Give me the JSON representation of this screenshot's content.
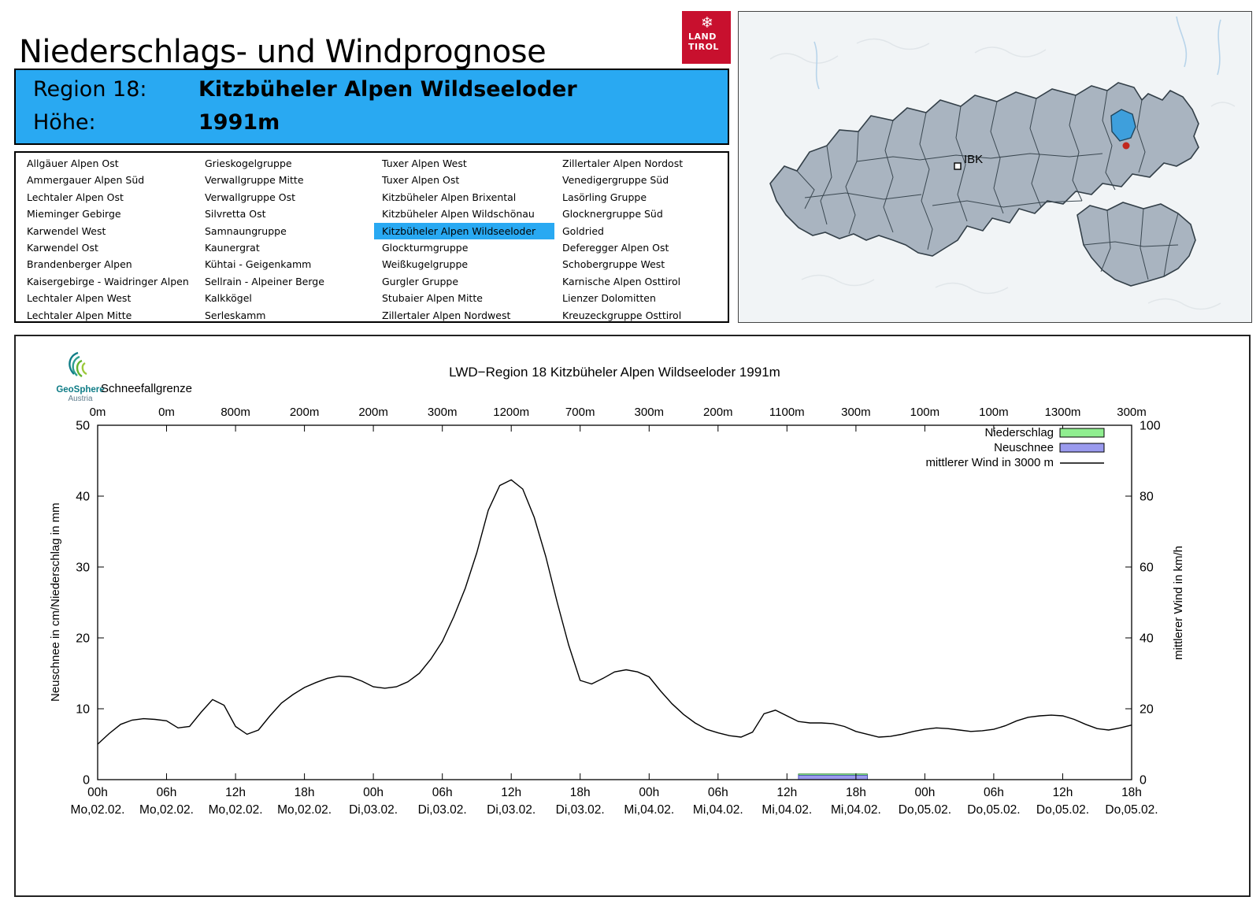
{
  "header": {
    "title": "Niederschlags- und Windprognose"
  },
  "brand": {
    "snowflake_icon": "❄",
    "line1": "LAND",
    "line2": "TIROL"
  },
  "region_banner": {
    "region_label": "Region 18:",
    "region_name": "Kitzbüheler Alpen Wildseeloder",
    "hoehe_label": "Höhe:",
    "hoehe_value": "1991m"
  },
  "region_list": {
    "selected": "Kitzbüheler Alpen Wildseeloder",
    "columns": [
      [
        "Allgäuer Alpen Ost",
        "Ammergauer Alpen Süd",
        "Lechtaler Alpen Ost",
        "Mieminger Gebirge",
        "Karwendel West",
        "Karwendel Ost",
        "Brandenberger Alpen",
        "Kaisergebirge - Waidringer Alpen",
        "Lechtaler Alpen West",
        "Lechtaler Alpen Mitte"
      ],
      [
        "Grieskogelgruppe",
        "Verwallgruppe Mitte",
        "Verwallgruppe Ost",
        "Silvretta Ost",
        "Samnaungruppe",
        "Kaunergrat",
        "Kühtai - Geigenkamm",
        "Sellrain - Alpeiner Berge",
        "Kalkkögel",
        "Serleskamm"
      ],
      [
        "Tuxer Alpen West",
        "Tuxer Alpen Ost",
        "Kitzbüheler Alpen Brixental",
        "Kitzbüheler Alpen Wildschönau",
        "Kitzbüheler Alpen Wildseeloder",
        "Glockturmgruppe",
        "Weißkugelgruppe",
        "Gurgler Gruppe",
        "Stubaier Alpen Mitte",
        "Zillertaler Alpen Nordwest"
      ],
      [
        "Zillertaler Alpen Nordost",
        "Venedigergruppe Süd",
        "Lasörling Gruppe",
        "Glocknergruppe Süd",
        "Goldried",
        "Deferegger Alpen Ost",
        "Schobergruppe West",
        "Karnische Alpen Osttirol",
        "Lienzer Dolomitten",
        "Kreuzeckgruppe Osttirol"
      ]
    ]
  },
  "map": {
    "ibk_label": "IBK",
    "highlight_color": "#3E9FDC",
    "region_fill": "#A9B4C0"
  },
  "geosphere": {
    "line1": "GeoSphere",
    "line2": "Austria"
  },
  "chart_data": {
    "type": "line",
    "title": "LWD−Region 18 Kitzbüheler Alpen Wildseeloder 1991m",
    "schneefallgrenze_label": "Schneefallgrenze",
    "schneefallgrenze_values": [
      "0m",
      "0m",
      "800m",
      "200m",
      "200m",
      "300m",
      "1200m",
      "700m",
      "300m",
      "200m",
      "1100m",
      "300m",
      "100m",
      "100m",
      "1300m",
      "300m"
    ],
    "ylabel_left": "Neuschnee in cm/Niederschlag in mm",
    "ylabel_right": "mittlerer Wind in km/h",
    "ylim_left": [
      0,
      50
    ],
    "ylim_right": [
      0,
      100
    ],
    "yticks_left": [
      0,
      10,
      20,
      30,
      40,
      50
    ],
    "yticks_right": [
      0,
      20,
      40,
      60,
      80,
      100
    ],
    "x_total_hours": 90,
    "x_ticks": [
      {
        "hour": 0,
        "time": "00h",
        "date": "Mo,02.02."
      },
      {
        "hour": 6,
        "time": "06h",
        "date": "Mo,02.02."
      },
      {
        "hour": 12,
        "time": "12h",
        "date": "Mo,02.02."
      },
      {
        "hour": 18,
        "time": "18h",
        "date": "Mo,02.02."
      },
      {
        "hour": 24,
        "time": "00h",
        "date": "Di,03.02."
      },
      {
        "hour": 30,
        "time": "06h",
        "date": "Di,03.02."
      },
      {
        "hour": 36,
        "time": "12h",
        "date": "Di,03.02."
      },
      {
        "hour": 42,
        "time": "18h",
        "date": "Di,03.02."
      },
      {
        "hour": 48,
        "time": "00h",
        "date": "Mi,04.02."
      },
      {
        "hour": 54,
        "time": "06h",
        "date": "Mi,04.02."
      },
      {
        "hour": 60,
        "time": "12h",
        "date": "Mi,04.02."
      },
      {
        "hour": 66,
        "time": "18h",
        "date": "Mi,04.02."
      },
      {
        "hour": 72,
        "time": "00h",
        "date": "Do,05.02."
      },
      {
        "hour": 78,
        "time": "06h",
        "date": "Do,05.02."
      },
      {
        "hour": 84,
        "time": "12h",
        "date": "Do,05.02."
      },
      {
        "hour": 90,
        "time": "18h",
        "date": "Do,05.02."
      }
    ],
    "colors": {
      "niederschlag": "#90EE90",
      "neuschnee": "#9A9AEE",
      "wind": "#000000"
    },
    "legend": [
      {
        "label": "Niederschlag",
        "type": "box",
        "color": "#90EE90"
      },
      {
        "label": "Neuschnee",
        "type": "box",
        "color": "#9A9AEE"
      },
      {
        "label": "mittlerer Wind in 3000 m",
        "type": "line",
        "color": "#000000"
      }
    ],
    "wind": {
      "name": "mittlerer Wind in 3000 m",
      "axis": "right",
      "unit": "km/h",
      "start_hour": 0,
      "step_hours": 1,
      "values_kmh": [
        10,
        13,
        15.6,
        16.8,
        17.2,
        17,
        16.6,
        14.6,
        15,
        19,
        22.6,
        21,
        15,
        12.8,
        14,
        18,
        21.6,
        24,
        26,
        27.4,
        28.6,
        29.2,
        29,
        27.8,
        26.2,
        25.8,
        26.2,
        27.6,
        30,
        34,
        39,
        46,
        54,
        64,
        76,
        83,
        84.6,
        82,
        74,
        63,
        50,
        38,
        28,
        27,
        28.6,
        30.4,
        31,
        30.4,
        29,
        25,
        21.4,
        18.4,
        16,
        14.2,
        13.2,
        12.4,
        12,
        13.4,
        18.6,
        19.6,
        18,
        16.4,
        16,
        16,
        15.8,
        15,
        13.6,
        12.8,
        12,
        12.2,
        12.8,
        13.6,
        14.2,
        14.6,
        14.4,
        14,
        13.6,
        13.8,
        14.2,
        15.2,
        16.6,
        17.6,
        18,
        18.2,
        18,
        17,
        15.6,
        14.4,
        14,
        14.6,
        15.4
      ]
    },
    "niederschlag_bars": [
      {
        "start_hour": 61,
        "end_hour": 67,
        "value_mm": 0.8
      }
    ],
    "neuschnee_bars": [
      {
        "start_hour": 61,
        "end_hour": 67,
        "value_cm": 0.6
      }
    ]
  }
}
